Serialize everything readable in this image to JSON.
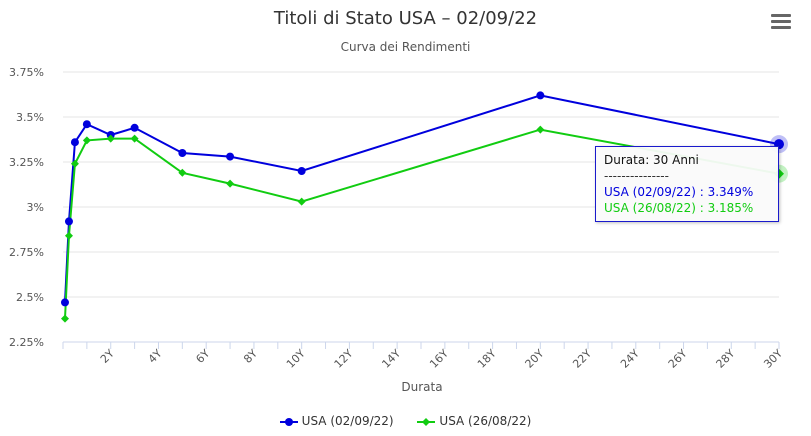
{
  "title": "Titoli di Stato USA – 02/09/22",
  "subtitle": "Curva dei Rendimenti",
  "menu_icon": "hamburger-menu-icon",
  "chart_data": {
    "type": "line",
    "xlabel": "Durata",
    "ylabel": "",
    "xlim": [
      0,
      30
    ],
    "ylim": [
      2.25,
      3.75
    ],
    "y_ticks": [
      "2.25%",
      "2.5%",
      "2.75%",
      "3%",
      "3.25%",
      "3.5%",
      "3.75%"
    ],
    "y_tick_values": [
      2.25,
      2.5,
      2.75,
      3.0,
      3.25,
      3.5,
      3.75
    ],
    "x_ticks": [
      "2Y",
      "4Y",
      "6Y",
      "8Y",
      "10Y",
      "12Y",
      "14Y",
      "16Y",
      "18Y",
      "20Y",
      "22Y",
      "24Y",
      "26Y",
      "28Y",
      "30Y"
    ],
    "x_tick_values": [
      2,
      4,
      6,
      8,
      10,
      12,
      14,
      16,
      18,
      20,
      22,
      24,
      26,
      28,
      30
    ],
    "grid": "horizontal",
    "legend_position": "bottom-center",
    "x": [
      0.0833,
      0.25,
      0.5,
      1,
      2,
      3,
      5,
      7,
      10,
      20,
      30
    ],
    "series": [
      {
        "name": "USA (02/09/22)",
        "color": "#0000dd",
        "marker": "circle",
        "values": [
          2.47,
          2.92,
          3.36,
          3.46,
          3.4,
          3.44,
          3.3,
          3.28,
          3.2,
          3.62,
          3.349
        ]
      },
      {
        "name": "USA (26/08/22)",
        "color": "#11cc11",
        "marker": "diamond",
        "values": [
          2.38,
          2.84,
          3.24,
          3.37,
          3.38,
          3.38,
          3.19,
          3.13,
          3.03,
          3.43,
          3.185
        ]
      }
    ]
  },
  "tooltip": {
    "header": "Durata: 30 Anni",
    "separator": "---------------",
    "line1": "USA (02/09/22) : 3.349%",
    "line2": "USA (26/08/22) : 3.185%"
  }
}
